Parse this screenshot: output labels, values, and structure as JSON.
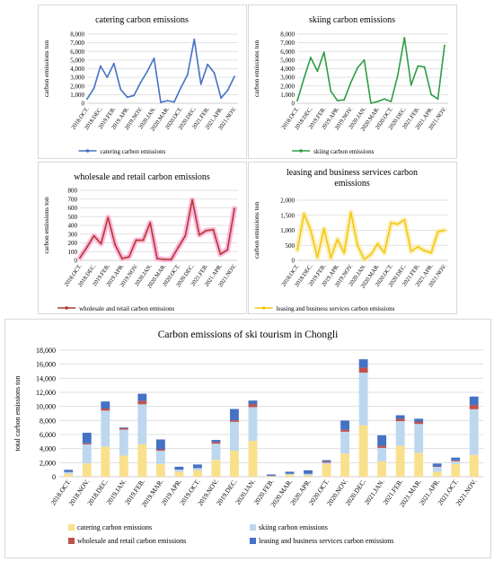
{
  "x_categories": [
    "2018.OCT.",
    "2018.NOV.",
    "2018.DEC.",
    "2019.JAN.",
    "2019.FEB.",
    "2019.MAR.",
    "2019.APR.",
    "2019.OCT.",
    "2019.NOV.",
    "2019.DEC.",
    "2020.JAN.",
    "2020.FEB.",
    "2020.MAR.",
    "2020.APR.",
    "2020.OCT.",
    "2020.NOV.",
    "2020.DEC.",
    "2021.JAN.",
    "2021.FEB.",
    "2021.MAR.",
    "2021.APR.",
    "2021.OCT.",
    "2021.NOV."
  ],
  "small_tick_labels": [
    "2018.OCT.",
    "2018.DEC.",
    "2019.FEB.",
    "2019.APR.",
    "2019.NOV.",
    "2020.JAN.",
    "2020.MAR.",
    "2020.OCT.",
    "2020.DEC.",
    "2021.FEB.",
    "2021.APR.",
    "2021.NOV."
  ],
  "colors": {
    "catering": "#4472c4",
    "skiing": "#2e9e44",
    "wholesale": "#b03a2e",
    "wholesale_glow": "#ff9ad0",
    "leasing": "#f2c80f",
    "leasing_glow": "#fbeaa0",
    "stack_catering": "#f9e08c",
    "stack_skiing": "#bdd7ee",
    "stack_wholesale": "#c0504d",
    "stack_leasing": "#4472c4"
  },
  "chart_data": [
    {
      "type": "line",
      "title": "catering carbon emissions",
      "ylabel": "carbon emissions ton",
      "ylim": [
        0,
        8000
      ],
      "yticks": [
        "0",
        "1,000",
        "2,000",
        "3,000",
        "4,000",
        "5,000",
        "6,000",
        "7,000",
        "8,000"
      ],
      "legend": "catering carbon emissions",
      "values": [
        500,
        1700,
        4300,
        3000,
        4600,
        1600,
        700,
        900,
        2400,
        3700,
        5200,
        100,
        300,
        150,
        1800,
        3300,
        7400,
        2200,
        4500,
        3500,
        600,
        1500,
        3100
      ]
    },
    {
      "type": "line",
      "title": "skiing carbon emissions",
      "ylabel": "carbon emissions ton",
      "ylim": [
        0,
        8000
      ],
      "yticks": [
        "0",
        "1,000",
        "2,000",
        "3,000",
        "4,000",
        "5,000",
        "6,000",
        "7,000",
        "8,000"
      ],
      "legend": "skiing carbon emissions",
      "values": [
        300,
        2900,
        5300,
        3700,
        5900,
        1400,
        300,
        400,
        2400,
        4100,
        5000,
        0,
        200,
        500,
        200,
        3200,
        7600,
        2100,
        4300,
        4200,
        1000,
        500,
        6700
      ]
    },
    {
      "type": "line",
      "title": "wholesale and retail  carbon emissions",
      "ylabel": "carbon emissions ton",
      "ylim": [
        0,
        800
      ],
      "yticks": [
        "0",
        "100",
        "200",
        "300",
        "400",
        "500",
        "600",
        "700",
        "800"
      ],
      "legend": "wholesale and retail  carbon emissions",
      "values": [
        30,
        150,
        280,
        190,
        490,
        180,
        20,
        40,
        230,
        230,
        430,
        20,
        10,
        10,
        150,
        280,
        690,
        290,
        340,
        350,
        70,
        120,
        590
      ]
    },
    {
      "type": "line",
      "title_lines": [
        "leasing and business services carbon",
        "emissions"
      ],
      "ylabel": "carbon emissions ton",
      "ylim": [
        0,
        2000
      ],
      "yticks": [
        "0",
        "500",
        "1,000",
        "1,500",
        "2,000"
      ],
      "legend": "leasing and business services carbon emissions",
      "values": [
        350,
        1550,
        1000,
        100,
        1050,
        80,
        700,
        250,
        1600,
        500,
        30,
        200,
        550,
        250,
        1250,
        1200,
        1350,
        300,
        450,
        320,
        250,
        950,
        1000
      ]
    },
    {
      "type": "bar",
      "stacked": true,
      "title": "Carbon emissions of ski tourism in Chongli",
      "ylabel": "total carbon emissions ton",
      "ylim": [
        0,
        18000
      ],
      "yticks": [
        "0",
        "2,000",
        "4,000",
        "6,000",
        "8,000",
        "10,000",
        "12,000",
        "14,000",
        "16,000",
        "18,000"
      ],
      "series": [
        {
          "name": "catering carbon emissions",
          "values": [
            400,
            1900,
            4300,
            3000,
            4600,
            1800,
            700,
            900,
            2400,
            3700,
            5100,
            100,
            300,
            200,
            1800,
            3300,
            7300,
            2200,
            4400,
            3400,
            700,
            1800,
            3100
          ]
        },
        {
          "name": "skiing carbon emissions",
          "values": [
            250,
            2700,
            5100,
            3700,
            5700,
            1900,
            300,
            300,
            2300,
            4100,
            4800,
            0,
            100,
            200,
            200,
            3100,
            7500,
            1900,
            3500,
            4100,
            700,
            400,
            6500
          ]
        },
        {
          "name": "wholesale and retail  carbon emissions",
          "values": [
            30,
            150,
            300,
            200,
            500,
            200,
            20,
            40,
            230,
            230,
            430,
            20,
            10,
            10,
            150,
            280,
            700,
            290,
            340,
            350,
            70,
            120,
            600
          ]
        },
        {
          "name": "leasing and business services carbon emissions",
          "values": [
            300,
            1500,
            1000,
            100,
            1000,
            1400,
            400,
            500,
            300,
            1600,
            500,
            200,
            300,
            500,
            200,
            1300,
            1200,
            1500,
            500,
            400,
            400,
            400,
            1200
          ]
        }
      ],
      "legend_position": "bottom"
    }
  ]
}
